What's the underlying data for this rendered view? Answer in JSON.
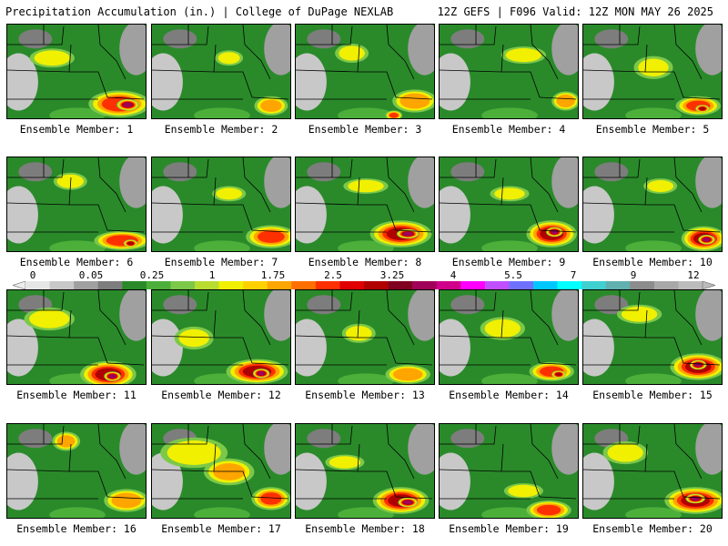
{
  "header": {
    "left_title": "Precipitation Accumulation (in.) | College of DuPage NEXLAB",
    "right_title": "12Z GEFS | F096 Valid: 12Z MON MAY 26 2025"
  },
  "colorbar": {
    "tick_labels": [
      "0",
      "0.05",
      "0.25",
      "1",
      "1.75",
      "2.5",
      "3.25",
      "4",
      "5.5",
      "7",
      "9",
      "12"
    ],
    "colors": [
      "#e6e6e6",
      "#c8c8c8",
      "#a0a0a0",
      "#7d7d7d",
      "#2a8a2a",
      "#4caf3a",
      "#7cc848",
      "#b8dc30",
      "#f0f000",
      "#ffd000",
      "#ffa500",
      "#ff7000",
      "#ff3000",
      "#e00000",
      "#b00000",
      "#800020",
      "#a0005a",
      "#d0008a",
      "#ff00ff",
      "#c050ff",
      "#7070ff",
      "#00c8ff",
      "#00ffff",
      "#40d0d0",
      "#60b0b0",
      "#8c8c8c",
      "#a8a8a8",
      "#bcbcbc"
    ]
  },
  "members": [
    {
      "label": "Ensemble Member: 1",
      "blobs": [
        [
          0.32,
          0.35,
          0.16,
          0.1,
          3
        ],
        [
          0.8,
          0.83,
          0.22,
          0.14,
          7
        ],
        [
          0.86,
          0.84,
          0.08,
          0.06,
          10
        ]
      ]
    },
    {
      "label": "Ensemble Member: 2",
      "blobs": [
        [
          0.55,
          0.35,
          0.1,
          0.08,
          2
        ],
        [
          0.85,
          0.85,
          0.12,
          0.1,
          4
        ]
      ]
    },
    {
      "label": "Ensemble Member: 3",
      "blobs": [
        [
          0.4,
          0.3,
          0.12,
          0.1,
          2
        ],
        [
          0.85,
          0.8,
          0.16,
          0.12,
          5
        ],
        [
          0.7,
          0.95,
          0.06,
          0.05,
          6
        ]
      ]
    },
    {
      "label": "Ensemble Member: 4",
      "blobs": [
        [
          0.6,
          0.32,
          0.16,
          0.09,
          3
        ],
        [
          0.9,
          0.8,
          0.1,
          0.1,
          5
        ]
      ]
    },
    {
      "label": "Ensemble Member: 5",
      "blobs": [
        [
          0.5,
          0.45,
          0.14,
          0.12,
          2
        ],
        [
          0.82,
          0.85,
          0.16,
          0.1,
          6
        ],
        [
          0.85,
          0.88,
          0.05,
          0.04,
          9
        ]
      ]
    },
    {
      "label": "Ensemble Member: 6",
      "blobs": [
        [
          0.45,
          0.25,
          0.12,
          0.09,
          3
        ],
        [
          0.82,
          0.87,
          0.2,
          0.1,
          7
        ],
        [
          0.88,
          0.9,
          0.05,
          0.04,
          9
        ]
      ]
    },
    {
      "label": "Ensemble Member: 7",
      "blobs": [
        [
          0.55,
          0.38,
          0.12,
          0.08,
          2
        ],
        [
          0.85,
          0.83,
          0.18,
          0.12,
          6
        ]
      ]
    },
    {
      "label": "Ensemble Member: 8",
      "blobs": [
        [
          0.5,
          0.3,
          0.16,
          0.08,
          3
        ],
        [
          0.75,
          0.8,
          0.22,
          0.14,
          8
        ],
        [
          0.8,
          0.8,
          0.08,
          0.05,
          11
        ]
      ]
    },
    {
      "label": "Ensemble Member: 9",
      "blobs": [
        [
          0.5,
          0.38,
          0.14,
          0.08,
          2
        ],
        [
          0.8,
          0.8,
          0.18,
          0.14,
          8
        ],
        [
          0.82,
          0.78,
          0.06,
          0.05,
          11
        ]
      ]
    },
    {
      "label": "Ensemble Member: 10",
      "blobs": [
        [
          0.55,
          0.3,
          0.12,
          0.08,
          2
        ],
        [
          0.86,
          0.85,
          0.16,
          0.13,
          8
        ],
        [
          0.88,
          0.86,
          0.06,
          0.05,
          11
        ]
      ]
    },
    {
      "label": "Ensemble Member: 11",
      "blobs": [
        [
          0.3,
          0.3,
          0.18,
          0.12,
          3
        ],
        [
          0.72,
          0.88,
          0.2,
          0.14,
          8
        ],
        [
          0.75,
          0.9,
          0.06,
          0.05,
          11
        ]
      ]
    },
    {
      "label": "Ensemble Member: 12",
      "blobs": [
        [
          0.3,
          0.5,
          0.14,
          0.12,
          2
        ],
        [
          0.75,
          0.85,
          0.22,
          0.13,
          8
        ],
        [
          0.78,
          0.87,
          0.06,
          0.05,
          11
        ]
      ]
    },
    {
      "label": "Ensemble Member: 13",
      "blobs": [
        [
          0.45,
          0.45,
          0.12,
          0.1,
          2
        ],
        [
          0.8,
          0.88,
          0.16,
          0.1,
          5
        ]
      ]
    },
    {
      "label": "Ensemble Member: 14",
      "blobs": [
        [
          0.45,
          0.4,
          0.16,
          0.12,
          3
        ],
        [
          0.8,
          0.85,
          0.16,
          0.1,
          6
        ],
        [
          0.85,
          0.88,
          0.05,
          0.04,
          9
        ]
      ]
    },
    {
      "label": "Ensemble Member: 15",
      "blobs": [
        [
          0.4,
          0.25,
          0.16,
          0.1,
          3
        ],
        [
          0.82,
          0.8,
          0.2,
          0.14,
          8
        ],
        [
          0.82,
          0.78,
          0.06,
          0.05,
          11
        ]
      ]
    },
    {
      "label": "Ensemble Member: 16",
      "blobs": [
        [
          0.42,
          0.18,
          0.1,
          0.1,
          4
        ],
        [
          0.85,
          0.8,
          0.16,
          0.12,
          5
        ]
      ]
    },
    {
      "label": "Ensemble Member: 17",
      "blobs": [
        [
          0.3,
          0.3,
          0.24,
          0.16,
          3
        ],
        [
          0.55,
          0.5,
          0.18,
          0.14,
          4
        ],
        [
          0.85,
          0.78,
          0.14,
          0.12,
          6
        ]
      ]
    },
    {
      "label": "Ensemble Member: 18",
      "blobs": [
        [
          0.35,
          0.4,
          0.14,
          0.08,
          3
        ],
        [
          0.75,
          0.8,
          0.2,
          0.14,
          8
        ],
        [
          0.8,
          0.82,
          0.07,
          0.05,
          11
        ]
      ]
    },
    {
      "label": "Ensemble Member: 19",
      "blobs": [
        [
          0.6,
          0.7,
          0.14,
          0.08,
          3
        ],
        [
          0.78,
          0.9,
          0.16,
          0.1,
          6
        ]
      ]
    },
    {
      "label": "Ensemble Member: 20",
      "blobs": [
        [
          0.3,
          0.3,
          0.16,
          0.12,
          3
        ],
        [
          0.8,
          0.8,
          0.22,
          0.14,
          8
        ],
        [
          0.8,
          0.78,
          0.07,
          0.05,
          11
        ]
      ]
    }
  ]
}
